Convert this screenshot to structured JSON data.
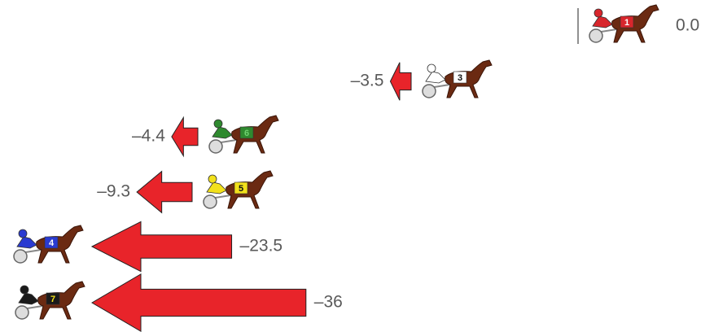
{
  "chart_data": {
    "type": "arrow",
    "categories": [
      "1",
      "3",
      "6",
      "5",
      "4",
      "7"
    ],
    "values": [
      0,
      -3.5,
      -4.4,
      -9.3,
      -23.5,
      -36
    ],
    "value_labels": [
      "0.0",
      "–3.5",
      "–4.4",
      "–9.3",
      "–23.5",
      "–36"
    ],
    "colors": [
      "#d8262c",
      "#ffffff",
      "#2f8a2f",
      "#f2e11b",
      "#2a3bd1",
      "#1a1a1a"
    ],
    "color": "#e8242a"
  }
}
